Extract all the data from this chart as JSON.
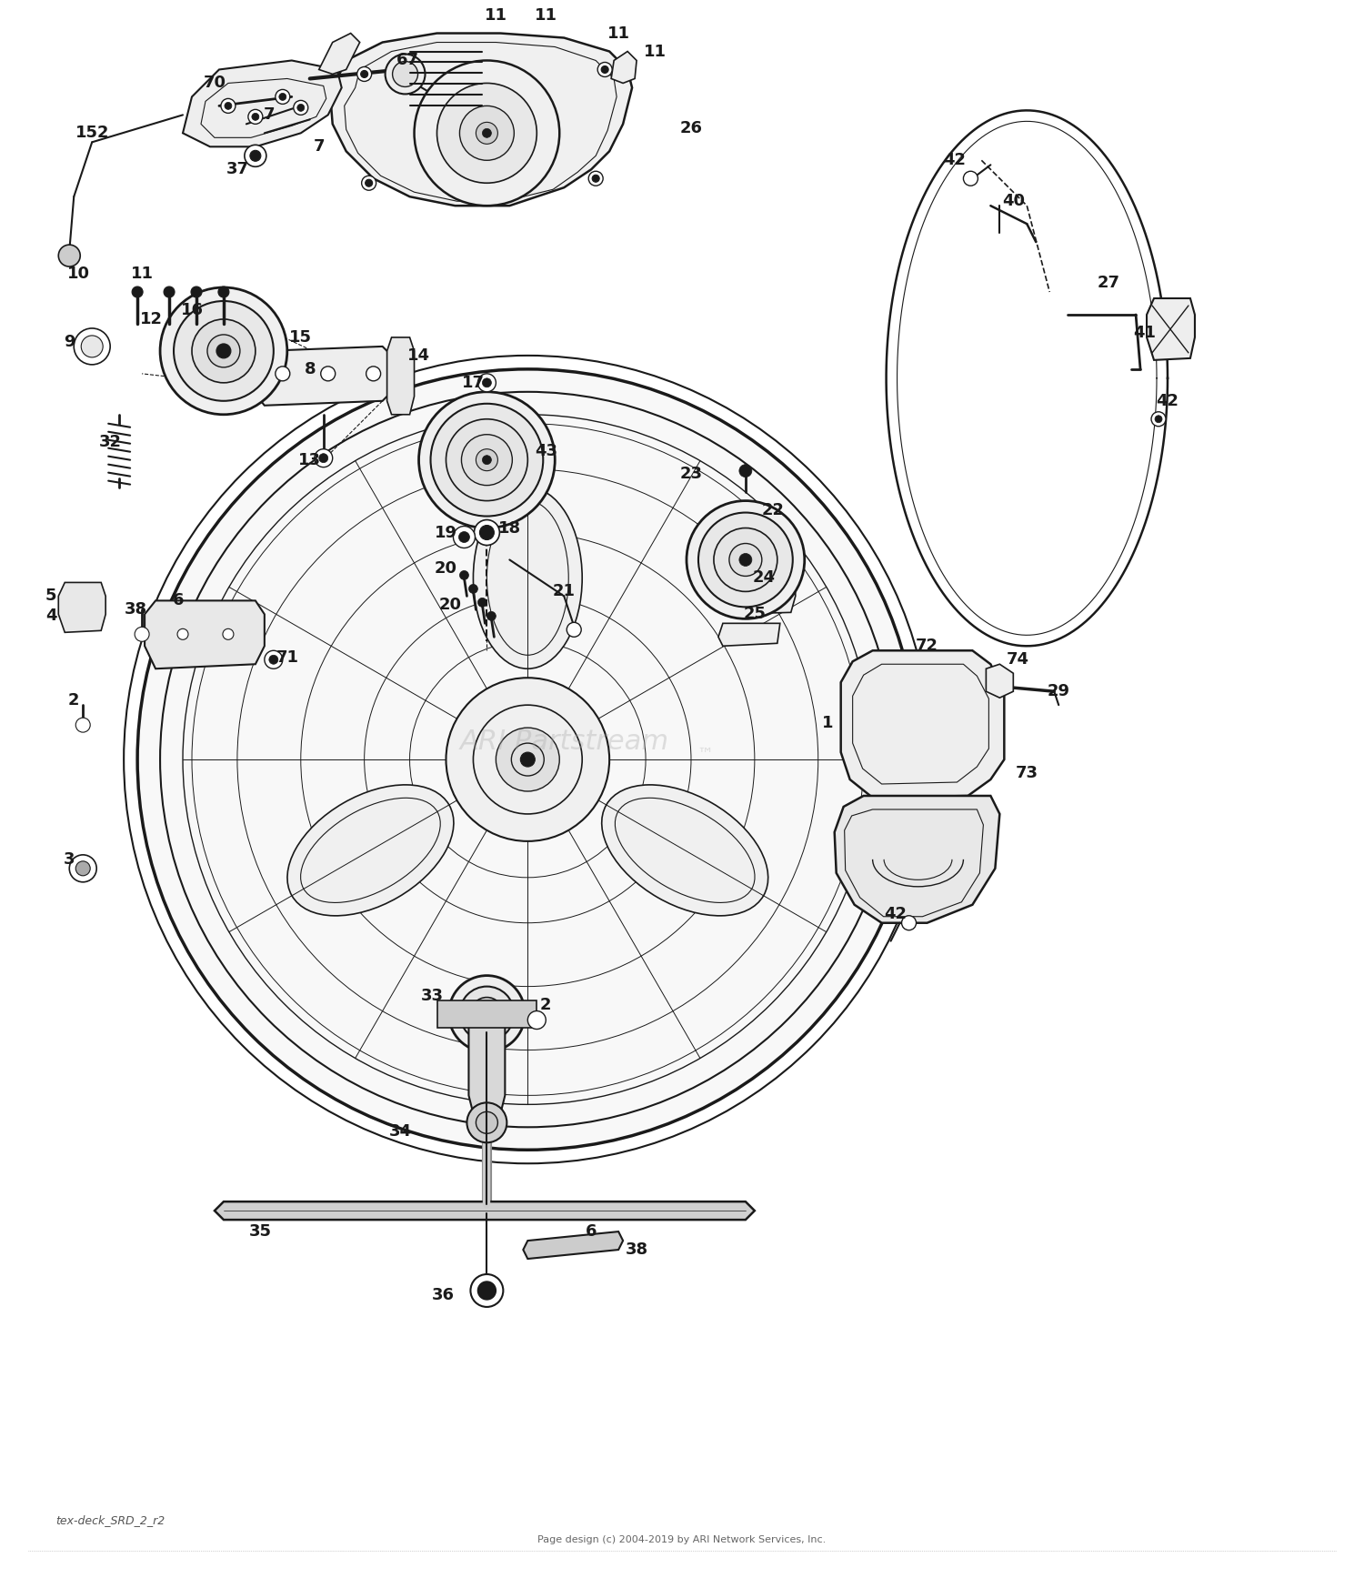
{
  "background_color": "#ffffff",
  "line_color": "#1a1a1a",
  "text_color": "#1a1a1a",
  "watermark": "ARIPartstream",
  "watermark_tm": "™",
  "footer_left": "tex-deck_SRD_2_r2",
  "footer_right": "Page design (c) 2004-2019 by ARI Network Services, Inc.",
  "fig_width": 15.0,
  "fig_height": 17.35,
  "dpi": 100
}
